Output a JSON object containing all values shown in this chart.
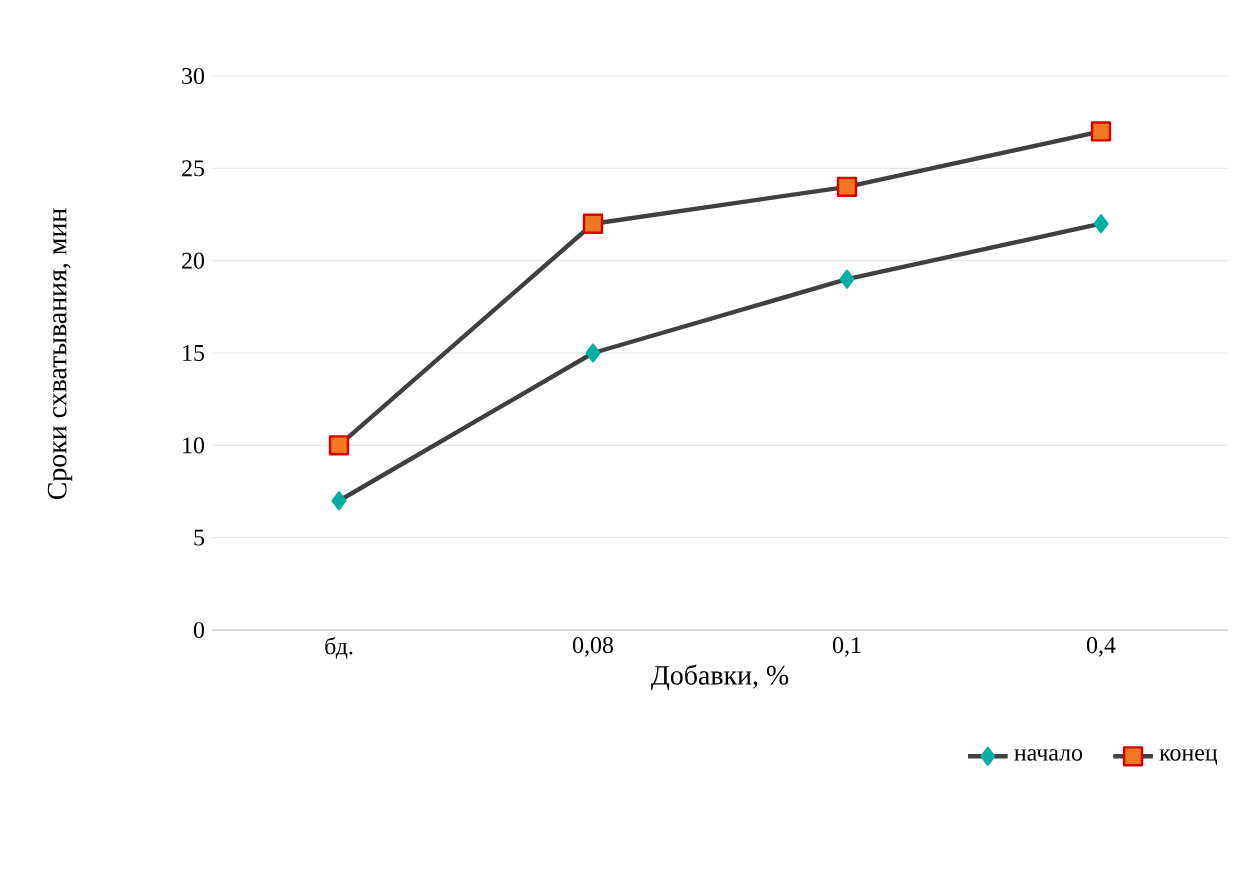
{
  "chart_data": {
    "type": "line",
    "xlabel": "Добавки, %",
    "ylabel": "Сроки схватывания, мин",
    "categories": [
      "бд.",
      "0,08",
      "0,1",
      "0,4"
    ],
    "series": [
      {
        "name": "начало",
        "color": "#00b0a0",
        "marker": "diamond",
        "values": [
          7,
          15,
          19,
          22
        ]
      },
      {
        "name": "конец",
        "color": "#f07820",
        "marker": "square",
        "values": [
          10,
          22,
          24,
          27
        ]
      }
    ],
    "ylim": [
      0,
      30
    ],
    "yticks": [
      0,
      5,
      10,
      15,
      20,
      25,
      30
    ],
    "grid": "y",
    "legend": "bottom right"
  }
}
